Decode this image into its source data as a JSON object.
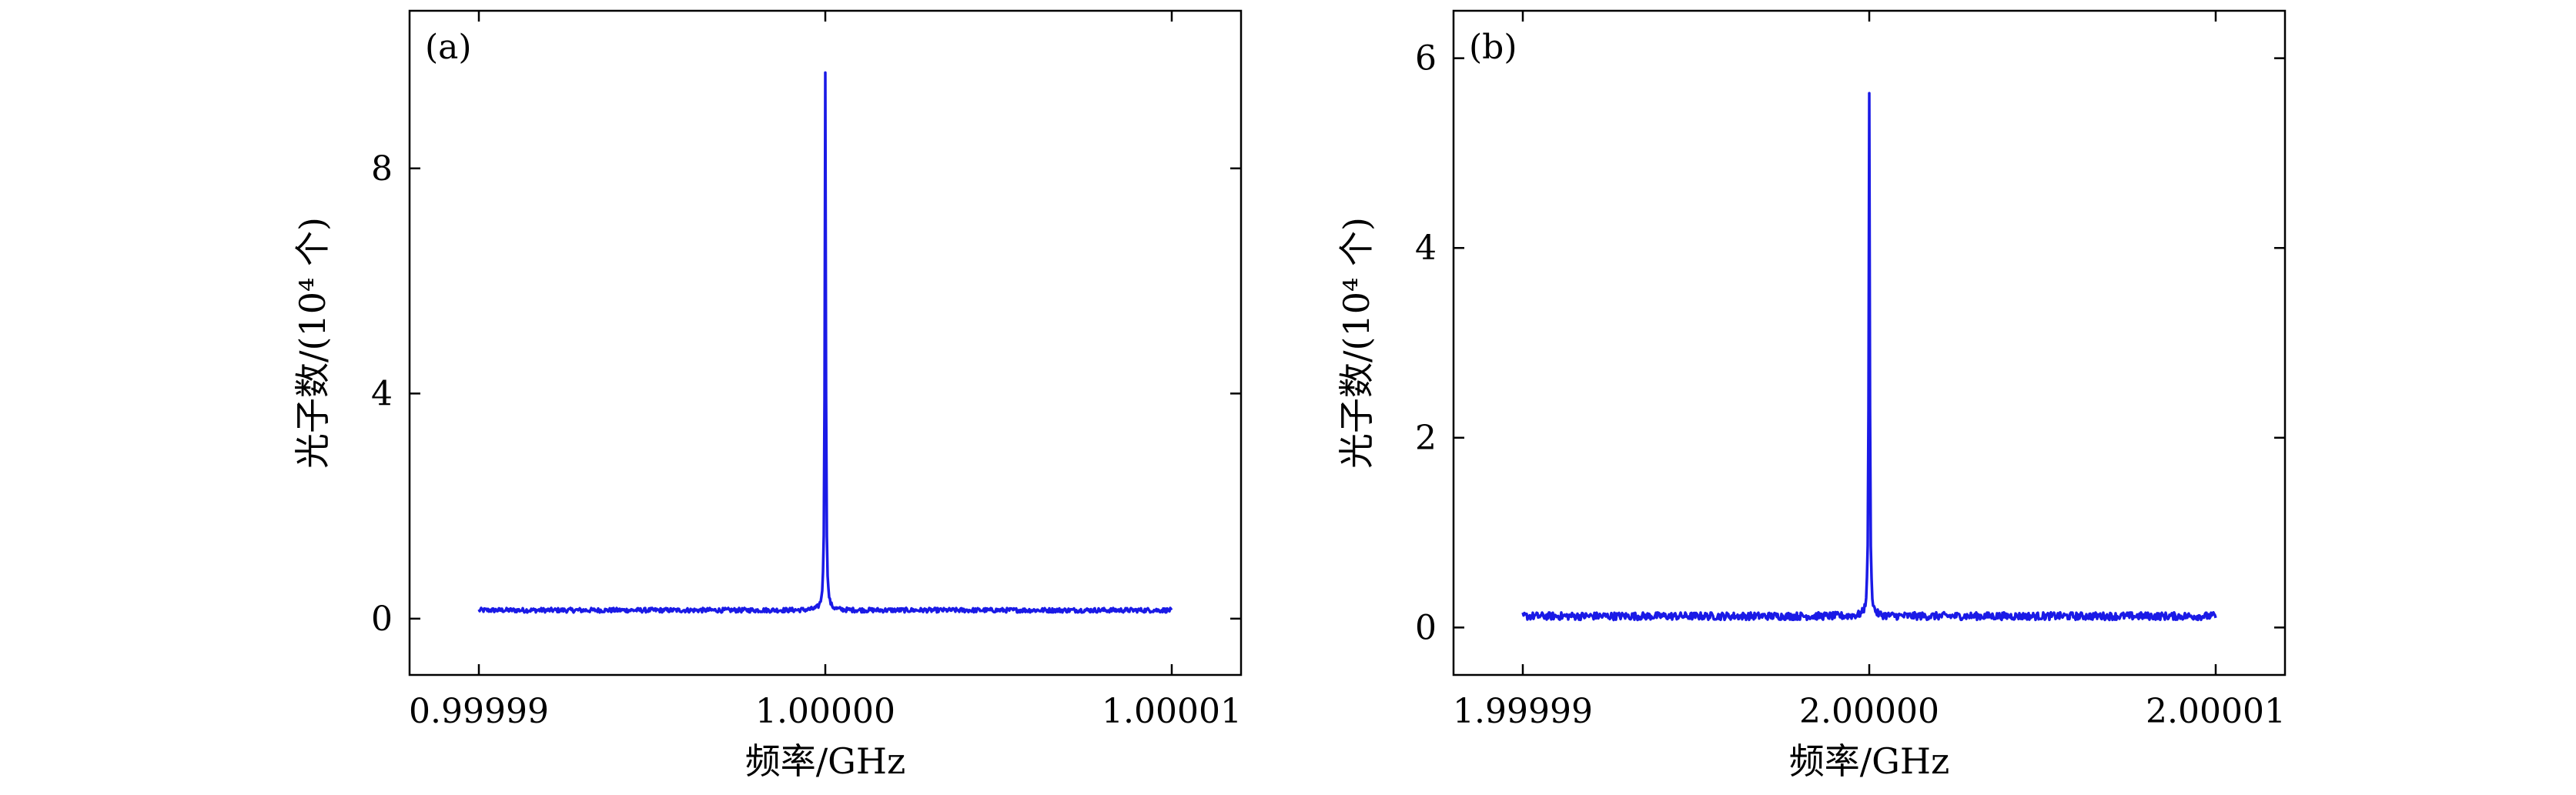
{
  "chart_data": [
    {
      "panel": "(a)",
      "type": "line",
      "xlabel": "频率/GHz",
      "ylabel": "光子数/(10⁴ 个)",
      "xticks": [
        "0.99999",
        "1.00000",
        "1.00001"
      ],
      "xtick_values": [
        0.99999,
        1.0,
        1.00001
      ],
      "yticks": [
        "0",
        "4",
        "8"
      ],
      "ytick_values": [
        0,
        4,
        8
      ],
      "xlim": [
        0.999988,
        1.000012
      ],
      "ylim": [
        -1.0,
        10.8
      ],
      "series_color": "#1a1ae6",
      "grid": false,
      "series": [
        {
          "x_range": [
            0.99999,
            1.00001
          ],
          "baseline": 0.15,
          "noise": 0.04,
          "peak_x": 1.0,
          "peak_y": 9.7
        }
      ]
    },
    {
      "panel": "(b)",
      "type": "line",
      "xlabel": "频率/GHz",
      "ylabel": "光子数/(10⁴ 个)",
      "xticks": [
        "1.99999",
        "2.00000",
        "2.00001"
      ],
      "xtick_values": [
        1.99999,
        2.0,
        2.00001
      ],
      "yticks": [
        "0",
        "2",
        "4",
        "6"
      ],
      "ytick_values": [
        0,
        2,
        4,
        6
      ],
      "xlim": [
        1.999988,
        2.000012
      ],
      "ylim": [
        -0.5,
        6.5
      ],
      "series_color": "#1a1ae6",
      "grid": false,
      "series": [
        {
          "x_range": [
            1.99999,
            2.00001
          ],
          "baseline": 0.12,
          "noise": 0.04,
          "peak_x": 2.0,
          "peak_y": 5.6
        }
      ]
    }
  ]
}
